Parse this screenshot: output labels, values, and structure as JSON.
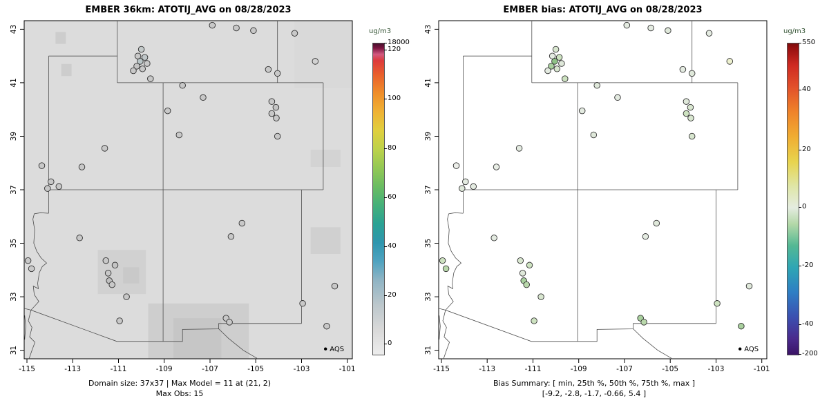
{
  "figure": {
    "background": "#ffffff"
  },
  "map_borders": [
    [
      [
        -114.05,
        42
      ],
      [
        -111.05,
        42
      ]
    ],
    [
      [
        -111.05,
        43.3
      ],
      [
        -111.05,
        41
      ]
    ],
    [
      [
        -111.05,
        41
      ],
      [
        -102.05,
        41
      ]
    ],
    [
      [
        -104.05,
        43.3
      ],
      [
        -104.05,
        41
      ]
    ],
    [
      [
        -114.05,
        42
      ],
      [
        -114.05,
        36.12
      ]
    ],
    [
      [
        -114.05,
        37
      ],
      [
        -102.05,
        37
      ]
    ],
    [
      [
        -109.05,
        41
      ],
      [
        -109.05,
        31.33
      ]
    ],
    [
      [
        -102.05,
        41
      ],
      [
        -102.05,
        37
      ]
    ],
    [
      [
        -103.0,
        37
      ],
      [
        -103.0,
        32.0
      ]
    ],
    [
      [
        -103.0,
        32.0
      ],
      [
        -106.62,
        32.0
      ],
      [
        -106.62,
        31.8
      ],
      [
        -108.2,
        31.78
      ],
      [
        -108.2,
        31.33
      ],
      [
        -109.05,
        31.33
      ]
    ],
    [
      [
        -106.62,
        31.8
      ],
      [
        -106.2,
        31.45
      ],
      [
        -105.55,
        31.0
      ],
      [
        -104.95,
        30.7
      ]
    ],
    [
      [
        -114.05,
        36.12
      ],
      [
        -114.4,
        36.14
      ],
      [
        -114.68,
        36.1
      ],
      [
        -114.74,
        35.9
      ],
      [
        -114.66,
        35.5
      ],
      [
        -114.7,
        35.0
      ],
      [
        -114.57,
        34.7
      ],
      [
        -114.38,
        34.45
      ],
      [
        -114.14,
        34.26
      ],
      [
        -114.33,
        34.13
      ],
      [
        -114.46,
        33.9
      ],
      [
        -114.53,
        33.5
      ],
      [
        -114.5,
        33.3
      ],
      [
        -114.72,
        33.4
      ],
      [
        -114.68,
        33.08
      ],
      [
        -114.48,
        32.82
      ],
      [
        -114.82,
        32.5
      ],
      [
        -111.07,
        31.33
      ],
      [
        -109.05,
        31.33
      ]
    ],
    [
      [
        -115.1,
        32.56
      ],
      [
        -114.82,
        32.5
      ],
      [
        -114.94,
        32.1
      ],
      [
        -114.78,
        31.85
      ],
      [
        -114.88,
        31.5
      ],
      [
        -114.65,
        31.3
      ],
      [
        -114.78,
        31.0
      ],
      [
        -114.9,
        30.7
      ]
    ],
    [
      [
        -115.1,
        32.3
      ],
      [
        -115.05,
        31.9
      ],
      [
        -115.1,
        31.4
      ]
    ]
  ],
  "chart_data": [
    {
      "type": "scatter",
      "subtype": "model-map-with-obs-overlay",
      "title": "EMBER 36km: ATOTIJ_AVG on 08/28/2023",
      "xlim": [
        -115,
        -101
      ],
      "ylim": [
        31,
        43
      ],
      "xticks": [
        -115,
        -113,
        -111,
        -109,
        -107,
        -105,
        -103,
        -101
      ],
      "yticks": [
        31,
        33,
        35,
        37,
        39,
        41,
        43
      ],
      "grid": false,
      "background_color": "#dcdcdc",
      "raster_patches": [
        {
          "lon": [
            -113.75,
            -113.3
          ],
          "lat": [
            42.45,
            42.9
          ],
          "color": "#cdcdcd"
        },
        {
          "lon": [
            -113.5,
            -113.05
          ],
          "lat": [
            41.25,
            41.7
          ],
          "color": "#cdcdcd"
        },
        {
          "lon": [
            -103.3,
            -100.8
          ],
          "lat": [
            40.8,
            43.3
          ],
          "color": "#d9d9d9"
        },
        {
          "lon": [
            -111.9,
            -109.8
          ],
          "lat": [
            33.1,
            34.75
          ],
          "color": "#d1d1d1"
        },
        {
          "lon": [
            -110.8,
            -110.1
          ],
          "lat": [
            33.5,
            34.1
          ],
          "color": "#c9c9c9"
        },
        {
          "lon": [
            -109.7,
            -105.3
          ],
          "lat": [
            30.7,
            32.75
          ],
          "color": "#cecece"
        },
        {
          "lon": [
            -108.6,
            -106.5
          ],
          "lat": [
            30.7,
            32.2
          ],
          "color": "#c6c6c6"
        },
        {
          "lon": [
            -102.6,
            -101.3
          ],
          "lat": [
            37.85,
            38.5
          ],
          "color": "#d3d3d3"
        },
        {
          "lon": [
            -102.6,
            -101.3
          ],
          "lat": [
            34.6,
            35.6
          ],
          "color": "#d0d0d0"
        }
      ],
      "colorbar": {
        "unit": "ug/m3",
        "ticks": [
          {
            "label": "18000",
            "f": 1.0
          },
          {
            "label": "120",
            "f": 0.978
          },
          {
            "label": "100",
            "f": 0.82
          },
          {
            "label": "80",
            "f": 0.661
          },
          {
            "label": "60",
            "f": 0.503
          },
          {
            "label": "40",
            "f": 0.346
          },
          {
            "label": "20",
            "f": 0.188
          },
          {
            "label": "0",
            "f": 0.033
          }
        ],
        "stops": [
          {
            "f": 0.0,
            "c": "#ededed"
          },
          {
            "f": 0.08,
            "c": "#d9d9d9"
          },
          {
            "f": 0.16,
            "c": "#bcc7cc"
          },
          {
            "f": 0.24,
            "c": "#8fb4c4"
          },
          {
            "f": 0.3,
            "c": "#4fa3c0"
          },
          {
            "f": 0.36,
            "c": "#2f96ae"
          },
          {
            "f": 0.42,
            "c": "#2aa294"
          },
          {
            "f": 0.48,
            "c": "#45b07a"
          },
          {
            "f": 0.54,
            "c": "#6abc62"
          },
          {
            "f": 0.6,
            "c": "#93c854"
          },
          {
            "f": 0.66,
            "c": "#bdd24a"
          },
          {
            "f": 0.72,
            "c": "#e0cf3e"
          },
          {
            "f": 0.78,
            "c": "#efb234"
          },
          {
            "f": 0.84,
            "c": "#ef8e2a"
          },
          {
            "f": 0.9,
            "c": "#e95f2c"
          },
          {
            "f": 0.945,
            "c": "#dd3a3c"
          },
          {
            "f": 0.965,
            "c": "#d25a80"
          },
          {
            "f": 0.985,
            "c": "#7c1440"
          },
          {
            "f": 1.0,
            "c": "#47102e"
          }
        ]
      },
      "markers": [
        [
          -106.9,
          43.15,
          "#c8c8c8"
        ],
        [
          -105.85,
          43.05,
          "#c8c8c8"
        ],
        [
          -105.1,
          42.95,
          "#c8c8c8"
        ],
        [
          -103.3,
          42.85,
          "#c8c8c8"
        ],
        [
          -110.0,
          42.25,
          "#c3c9c9"
        ],
        [
          -110.15,
          42.0,
          "#c8c8c8"
        ],
        [
          -109.85,
          41.95,
          "#bfc6c8"
        ],
        [
          -110.05,
          41.8,
          "#b8c4c6"
        ],
        [
          -109.75,
          41.72,
          "#c8c8c8"
        ],
        [
          -110.2,
          41.62,
          "#c4c4c4"
        ],
        [
          -109.95,
          41.52,
          "#c8c8c8"
        ],
        [
          -110.35,
          41.45,
          "#c8c8c8"
        ],
        [
          -109.6,
          41.15,
          "#c8c8c8"
        ],
        [
          -108.2,
          40.9,
          "#c8c8c8"
        ],
        [
          -104.45,
          41.5,
          "#c8c8c8"
        ],
        [
          -104.05,
          41.35,
          "#c8c8c8"
        ],
        [
          -102.4,
          41.8,
          "#d2d2d2"
        ],
        [
          -107.3,
          40.45,
          "#c8c8c8"
        ],
        [
          -104.3,
          40.3,
          "#c8c8c8"
        ],
        [
          -104.12,
          40.08,
          "#c4c4c4"
        ],
        [
          -104.3,
          39.85,
          "#c8c8c8"
        ],
        [
          -104.1,
          39.68,
          "#c8c8c8"
        ],
        [
          -108.85,
          39.95,
          "#c8c8c8"
        ],
        [
          -108.35,
          39.05,
          "#c8c8c8"
        ],
        [
          -104.05,
          39.0,
          "#c8c8c8"
        ],
        [
          -111.6,
          38.55,
          "#c8c8c8"
        ],
        [
          -112.6,
          37.85,
          "#c8c8c8"
        ],
        [
          -114.35,
          37.9,
          "#c8c8c8"
        ],
        [
          -113.95,
          37.3,
          "#c8c8c8"
        ],
        [
          -114.1,
          37.05,
          "#c8c8c8"
        ],
        [
          -113.6,
          37.12,
          "#c8c8c8"
        ],
        [
          -105.6,
          35.75,
          "#c8c8c8"
        ],
        [
          -106.08,
          35.25,
          "#c8c8c8"
        ],
        [
          -112.7,
          35.2,
          "#c8c8c8"
        ],
        [
          -114.95,
          34.35,
          "#c8c8c8"
        ],
        [
          -114.8,
          34.05,
          "#c8c8c8"
        ],
        [
          -111.55,
          34.35,
          "#c8c8c8"
        ],
        [
          -111.15,
          34.18,
          "#c4c4c4"
        ],
        [
          -111.45,
          33.88,
          "#c8c8c8"
        ],
        [
          -111.4,
          33.6,
          "#bfbfbf"
        ],
        [
          -111.28,
          33.45,
          "#c8c8c8"
        ],
        [
          -110.65,
          33.0,
          "#c8c8c8"
        ],
        [
          -110.95,
          32.1,
          "#c8c8c8"
        ],
        [
          -106.3,
          32.2,
          "#c8c8c8"
        ],
        [
          -106.15,
          32.05,
          "#c8c8c8"
        ],
        [
          -102.95,
          32.75,
          "#c8c8c8"
        ],
        [
          -101.55,
          33.4,
          "#c8c8c8"
        ],
        [
          -101.9,
          31.9,
          "#c8c8c8"
        ]
      ],
      "legend": {
        "label": "AQS"
      },
      "captions": [
        "Domain size: 37x37 | Max Model = 11 at (21, 2)",
        "Max Obs: 15"
      ]
    },
    {
      "type": "scatter",
      "subtype": "bias-map",
      "title": "EMBER bias: ATOTIJ_AVG on 08/28/2023",
      "xlim": [
        -115,
        -101
      ],
      "ylim": [
        31,
        43
      ],
      "xticks": [
        -115,
        -113,
        -111,
        -109,
        -107,
        -105,
        -103,
        -101
      ],
      "yticks": [
        31,
        33,
        35,
        37,
        39,
        41,
        43
      ],
      "grid": false,
      "background_color": "#ffffff",
      "raster_patches": [],
      "colorbar": {
        "unit": "ug/m3",
        "ticks": [
          {
            "label": "550",
            "f": 1.0
          },
          {
            "label": "40",
            "f": 0.849
          },
          {
            "label": "20",
            "f": 0.656
          },
          {
            "label": "0",
            "f": 0.472
          },
          {
            "label": "-20",
            "f": 0.284
          },
          {
            "label": "-40",
            "f": 0.095
          },
          {
            "label": "-200",
            "f": 0.0
          }
        ],
        "stops": [
          {
            "f": 0.0,
            "c": "#3b1466"
          },
          {
            "f": 0.05,
            "c": "#4a2a8c"
          },
          {
            "f": 0.12,
            "c": "#3b4fb0"
          },
          {
            "f": 0.2,
            "c": "#2f7ec4"
          },
          {
            "f": 0.28,
            "c": "#2fa6b4"
          },
          {
            "f": 0.35,
            "c": "#54b894"
          },
          {
            "f": 0.42,
            "c": "#b4d8a8"
          },
          {
            "f": 0.472,
            "c": "#e4ece0"
          },
          {
            "f": 0.54,
            "c": "#dfe6a8"
          },
          {
            "f": 0.62,
            "c": "#e8d44e"
          },
          {
            "f": 0.7,
            "c": "#f0ad32"
          },
          {
            "f": 0.78,
            "c": "#ef832a"
          },
          {
            "f": 0.86,
            "c": "#e2502a"
          },
          {
            "f": 0.93,
            "c": "#cf2a22"
          },
          {
            "f": 0.985,
            "c": "#971010"
          },
          {
            "f": 1.0,
            "c": "#7c0d0d"
          }
        ]
      },
      "markers": [
        [
          -106.9,
          43.15,
          "#e4ebe1"
        ],
        [
          -105.85,
          43.05,
          "#e4ebe1"
        ],
        [
          -105.1,
          42.95,
          "#dfe8da"
        ],
        [
          -103.3,
          42.85,
          "#e4ebe1"
        ],
        [
          -110.0,
          42.25,
          "#d8e6cf"
        ],
        [
          -110.15,
          42.0,
          "#e4ebe1"
        ],
        [
          -109.85,
          41.95,
          "#cde2c0"
        ],
        [
          -110.05,
          41.8,
          "#8fc287"
        ],
        [
          -109.75,
          41.72,
          "#dfe8da"
        ],
        [
          -110.2,
          41.62,
          "#a9d09e"
        ],
        [
          -109.95,
          41.52,
          "#d8e6cf"
        ],
        [
          -110.35,
          41.45,
          "#e4ebe1"
        ],
        [
          -109.6,
          41.15,
          "#cde2c0"
        ],
        [
          -108.2,
          40.9,
          "#dfe8da"
        ],
        [
          -104.45,
          41.5,
          "#e4ebe1"
        ],
        [
          -104.05,
          41.35,
          "#dfe8da"
        ],
        [
          -102.4,
          41.8,
          "#edf1cf"
        ],
        [
          -107.3,
          40.45,
          "#e4ebe1"
        ],
        [
          -104.3,
          40.3,
          "#dfe8da"
        ],
        [
          -104.12,
          40.08,
          "#d8e6cf"
        ],
        [
          -104.3,
          39.85,
          "#cde2c0"
        ],
        [
          -104.1,
          39.68,
          "#d8e6cf"
        ],
        [
          -108.85,
          39.95,
          "#e4ebe1"
        ],
        [
          -108.35,
          39.05,
          "#dfe8da"
        ],
        [
          -104.05,
          39.0,
          "#d8e6cf"
        ],
        [
          -111.6,
          38.55,
          "#e4ebe1"
        ],
        [
          -112.6,
          37.85,
          "#e8ede5"
        ],
        [
          -114.35,
          37.9,
          "#eceee9"
        ],
        [
          -113.95,
          37.3,
          "#e4ebe1"
        ],
        [
          -114.1,
          37.05,
          "#dfe8da"
        ],
        [
          -113.6,
          37.12,
          "#e4ebe1"
        ],
        [
          -105.6,
          35.75,
          "#dfe8da"
        ],
        [
          -106.08,
          35.25,
          "#e4ebe1"
        ],
        [
          -112.7,
          35.2,
          "#e4ebe1"
        ],
        [
          -114.95,
          34.35,
          "#cde2c0"
        ],
        [
          -114.8,
          34.05,
          "#b9d8ab"
        ],
        [
          -111.55,
          34.35,
          "#d8e6cf"
        ],
        [
          -111.15,
          34.18,
          "#cde2c0"
        ],
        [
          -111.45,
          33.88,
          "#dfe8da"
        ],
        [
          -111.4,
          33.6,
          "#a9d09e"
        ],
        [
          -111.28,
          33.45,
          "#b9d8ab"
        ],
        [
          -110.65,
          33.0,
          "#d8e6cf"
        ],
        [
          -110.95,
          32.1,
          "#cde2c0"
        ],
        [
          -106.3,
          32.2,
          "#a9d09e"
        ],
        [
          -106.15,
          32.05,
          "#b9d8ab"
        ],
        [
          -102.95,
          32.75,
          "#cde2c0"
        ],
        [
          -101.55,
          33.4,
          "#dfe8da"
        ],
        [
          -101.9,
          31.9,
          "#a9d09e"
        ]
      ],
      "legend": {
        "label": "AQS"
      },
      "captions": [
        "Bias Summary: [ min, 25th %, 50th %, 75th %, max ]",
        "[-9.2,  -2.8,  -1.7,  -0.66,  5.4 ]"
      ]
    }
  ]
}
